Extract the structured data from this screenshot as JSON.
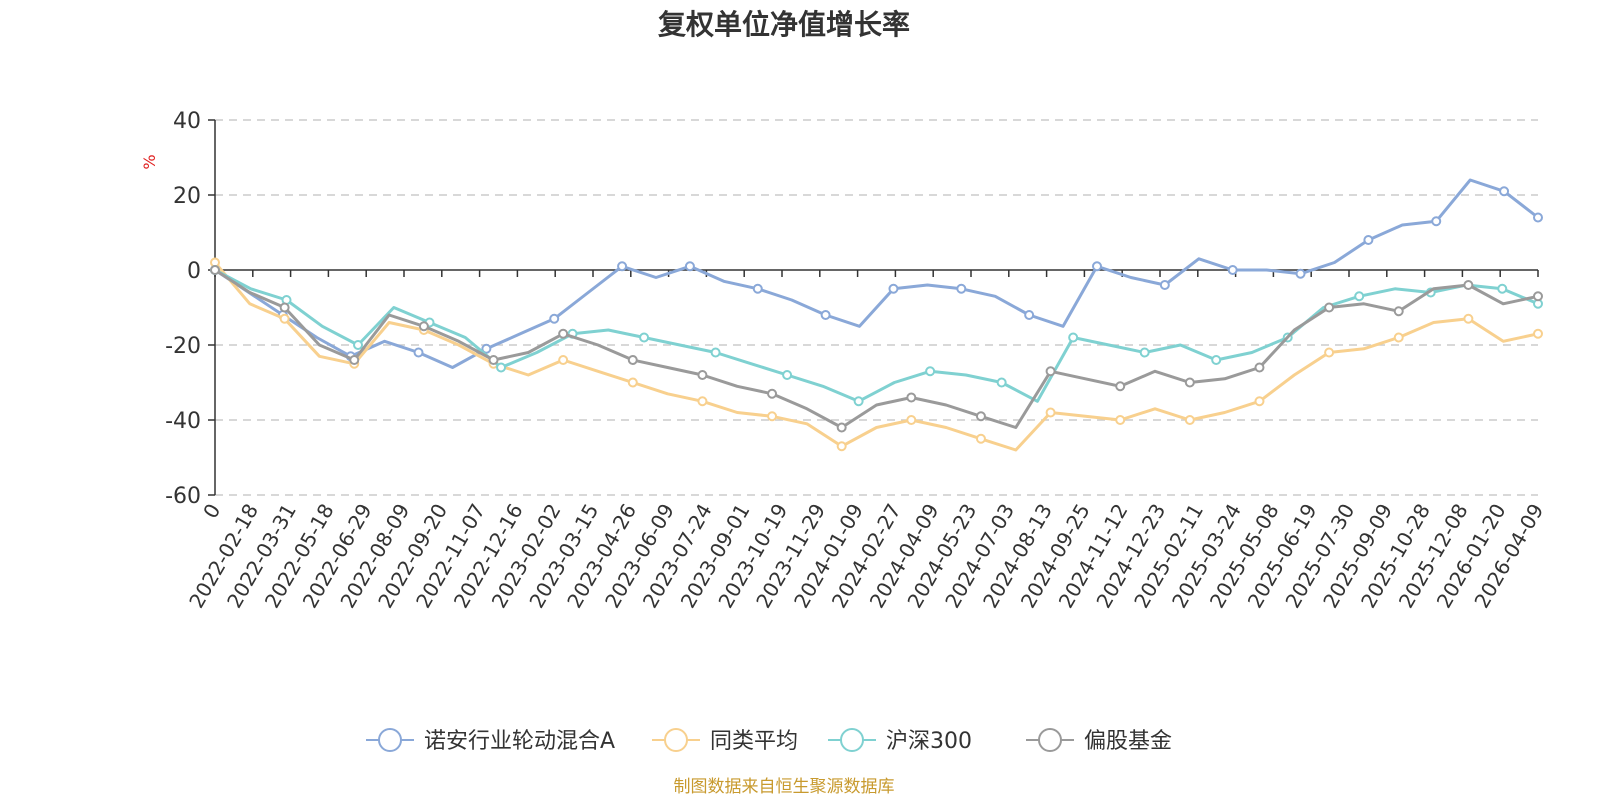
{
  "chart_data": {
    "type": "line",
    "title": "复权单位净值增长率",
    "ylabel": "%",
    "ylim": [
      -60,
      40
    ],
    "yticks": [
      40,
      20,
      0,
      -20,
      -40,
      -60
    ],
    "grid": true,
    "legend_position": "bottom",
    "x_tick_labels": [
      "0",
      "2022-02-18",
      "2022-03-31",
      "2022-05-18",
      "2022-06-29",
      "2022-08-09",
      "2022-09-20",
      "2022-11-07",
      "2022-12-16",
      "2023-02-02",
      "2023-03-15",
      "2023-04-26",
      "2023-06-09",
      "2023-07-24",
      "2023-09-01",
      "2023-10-19",
      "2023-11-29",
      "2024-01-09",
      "2024-02-27",
      "2024-04-09",
      "2024-05-23",
      "2024-07-03",
      "2024-08-13",
      "2024-09-25",
      "2024-11-12",
      "2024-12-23",
      "2025-02-11",
      "2025-03-24",
      "2025-05-08",
      "2025-06-19",
      "2025-07-30",
      "2025-09-09",
      "2025-10-28",
      "2025-12-08",
      "2026-01-20",
      "2026-04-09"
    ],
    "series": [
      {
        "name": "诺安行业轮动混合A",
        "color": "#8aa8d8",
        "values": [
          0,
          -6,
          -12,
          -18,
          -23,
          -19,
          -22,
          -26,
          -21,
          -17,
          -13,
          -6,
          1,
          -2,
          1,
          -3,
          -5,
          -8,
          -12,
          -15,
          -5,
          -4,
          -5,
          -7,
          -12,
          -15,
          1,
          -2,
          -4,
          3,
          0,
          0,
          -1,
          2,
          8,
          12,
          13,
          24,
          21,
          14
        ]
      },
      {
        "name": "同类平均",
        "color": "#f8d08e",
        "values": [
          2,
          -9,
          -13,
          -23,
          -25,
          -14,
          -16,
          -20,
          -25,
          -28,
          -24,
          -27,
          -30,
          -33,
          -35,
          -38,
          -39,
          -41,
          -47,
          -42,
          -40,
          -42,
          -45,
          -48,
          -38,
          -39,
          -40,
          -37,
          -40,
          -38,
          -35,
          -28,
          -22,
          -21,
          -18,
          -14,
          -13,
          -19,
          -17
        ]
      },
      {
        "name": "沪深300",
        "color": "#7fd1d1",
        "values": [
          0,
          -5,
          -8,
          -15,
          -20,
          -10,
          -14,
          -18,
          -26,
          -22,
          -17,
          -16,
          -18,
          -20,
          -22,
          -25,
          -28,
          -31,
          -35,
          -30,
          -27,
          -28,
          -30,
          -35,
          -18,
          -20,
          -22,
          -20,
          -24,
          -22,
          -18,
          -10,
          -7,
          -5,
          -6,
          -4,
          -5,
          -9
        ]
      },
      {
        "name": "偏股基金",
        "color": "#9a9a9a",
        "values": [
          0,
          -6,
          -10,
          -20,
          -24,
          -12,
          -15,
          -19,
          -24,
          -22,
          -17,
          -20,
          -24,
          -26,
          -28,
          -31,
          -33,
          -37,
          -42,
          -36,
          -34,
          -36,
          -39,
          -42,
          -27,
          -29,
          -31,
          -27,
          -30,
          -29,
          -26,
          -16,
          -10,
          -9,
          -11,
          -5,
          -4,
          -9,
          -7
        ]
      }
    ]
  },
  "source_note": "制图数据来自恒生聚源数据库"
}
